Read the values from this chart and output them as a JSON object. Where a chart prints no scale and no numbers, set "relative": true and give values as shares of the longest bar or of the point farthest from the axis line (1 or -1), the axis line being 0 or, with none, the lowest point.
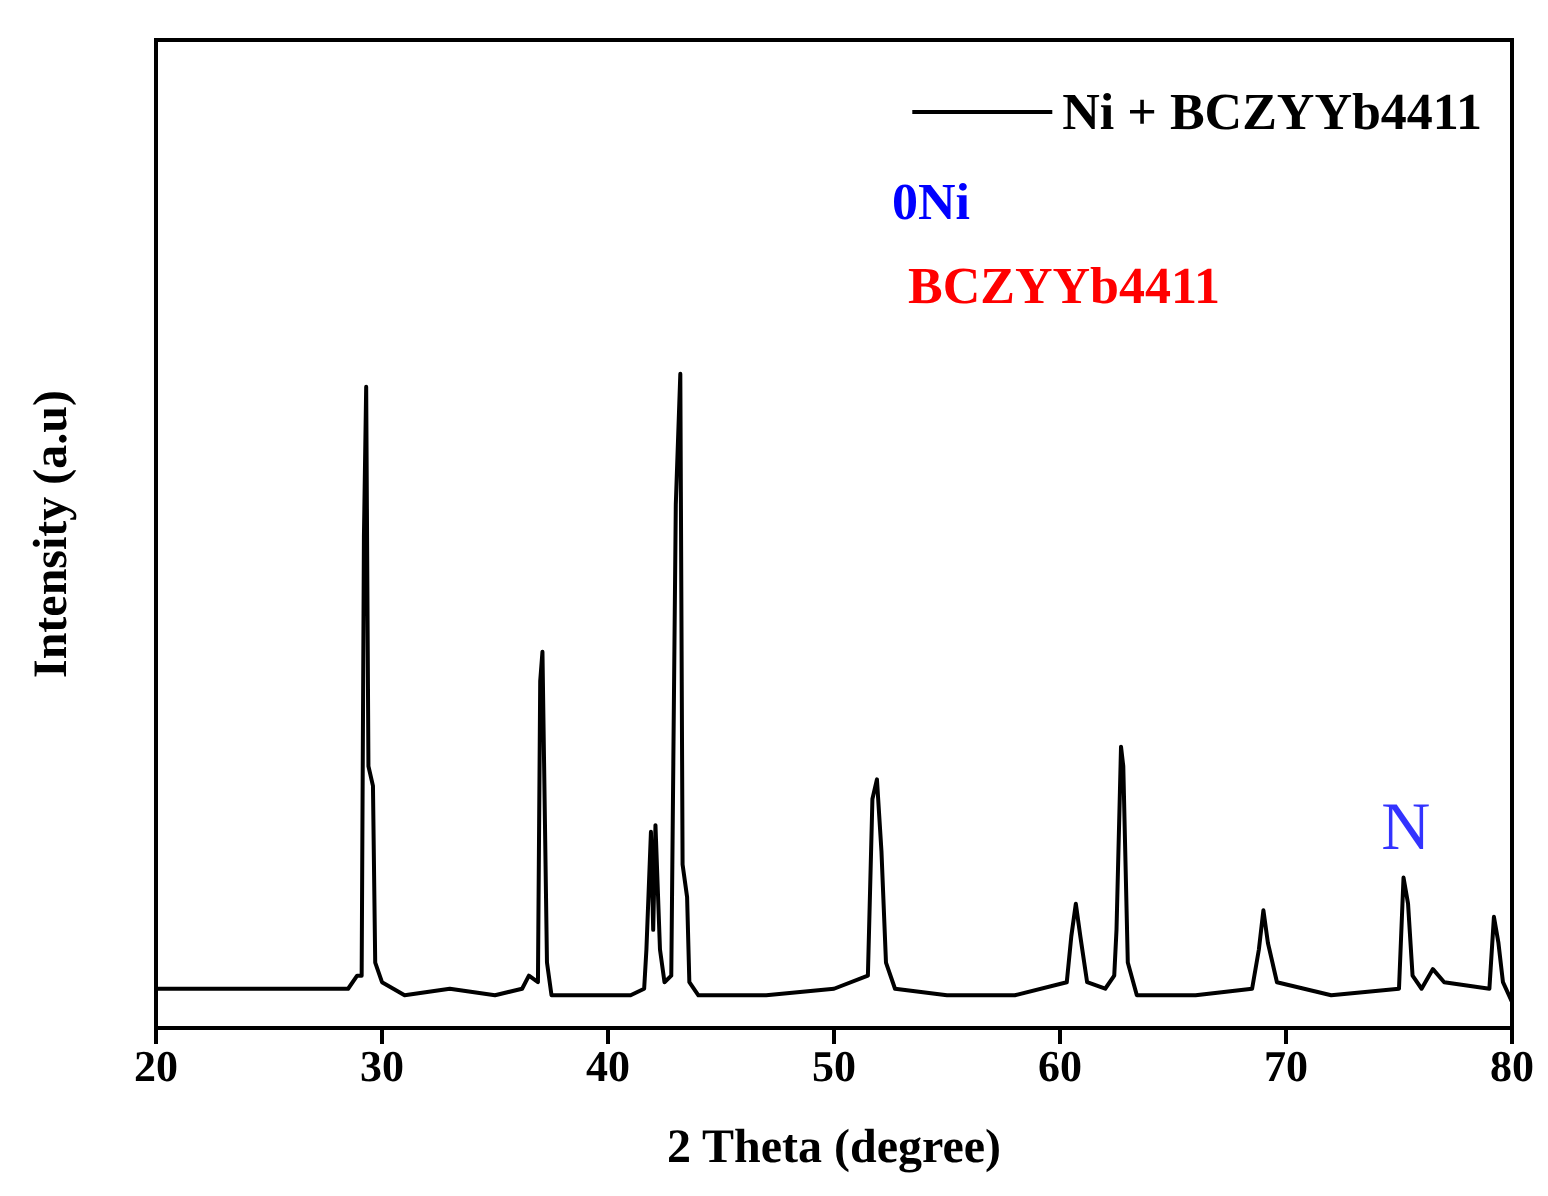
{
  "chart_data": {
    "type": "line",
    "relative": true,
    "xlabel": "2 Theta (degree)",
    "ylabel": "Intensity (a.u)",
    "xlim": [
      20,
      80
    ],
    "xticks": [
      20,
      30,
      40,
      50,
      60,
      70,
      80
    ],
    "tick_labels": "x",
    "legend": "top right",
    "grid": false,
    "marker": "none",
    "line_style": "solid",
    "series": [
      {
        "name": "Ni + BCZYYb4411",
        "color": "#000000",
        "x": [
          20,
          28.5,
          28.9,
          29.1,
          29.2,
          29.3,
          29.4,
          29.6,
          29.7,
          30,
          31,
          33,
          35,
          36.2,
          36.5,
          36.9,
          37,
          37.1,
          37.3,
          37.5,
          39,
          41,
          41.6,
          41.7,
          41.9,
          42,
          42.1,
          42.3,
          42.5,
          42.8,
          43,
          43.2,
          43.3,
          43.5,
          43.6,
          44,
          47,
          50,
          51.5,
          51.7,
          51.9,
          52.1,
          52.3,
          52.7,
          55,
          58,
          60.3,
          60.5,
          60.7,
          60.9,
          61.2,
          62,
          62.4,
          62.5,
          62.7,
          62.8,
          63,
          63.4,
          66,
          68.5,
          68.8,
          69,
          69.2,
          69.6,
          72,
          75,
          75.2,
          75.4,
          75.6,
          76,
          76.5,
          77,
          79,
          79.2,
          79.4,
          79.6,
          80
        ],
        "values": [
          0.06,
          0.06,
          0.08,
          0.08,
          0.75,
          0.98,
          0.4,
          0.37,
          0.1,
          0.07,
          0.05,
          0.06,
          0.05,
          0.06,
          0.08,
          0.07,
          0.53,
          0.575,
          0.1,
          0.05,
          0.05,
          0.05,
          0.06,
          0.12,
          0.3,
          0.15,
          0.31,
          0.12,
          0.07,
          0.08,
          0.8,
          1,
          0.25,
          0.2,
          0.07,
          0.05,
          0.05,
          0.06,
          0.08,
          0.35,
          0.38,
          0.27,
          0.1,
          0.06,
          0.05,
          0.05,
          0.07,
          0.14,
          0.19,
          0.14,
          0.07,
          0.06,
          0.08,
          0.15,
          0.43,
          0.4,
          0.1,
          0.05,
          0.05,
          0.06,
          0.12,
          0.18,
          0.13,
          0.07,
          0.05,
          0.06,
          0.23,
          0.19,
          0.08,
          0.06,
          0.09,
          0.07,
          0.06,
          0.17,
          0.13,
          0.07,
          0.04
        ]
      }
    ],
    "annotations": [
      "0Ni",
      "BCZYYb4411",
      {
        "text": "N",
        "x": 75.3,
        "y": 0.23
      }
    ]
  }
}
